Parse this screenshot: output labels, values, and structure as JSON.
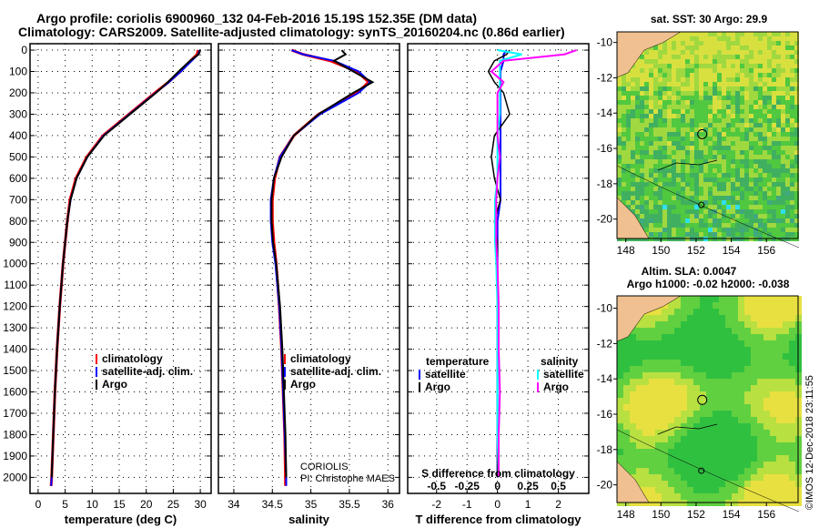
{
  "title": {
    "line1": "Argo profile: coriolis 6900960_132 04-Feb-2016 15.19S 152.35E (DM data)",
    "line2": "Climatology: CARS2009. Satellite-adjusted climatology: synTS_20160204.nc (0.86d earlier)"
  },
  "stamp": "©IMOS 12-Dec-2018 23:11:55",
  "credit": {
    "line1": "CORIOLIS",
    "line2": "PI: Christophe MAES"
  },
  "colors": {
    "climatology": "#ff0000",
    "satellite": "#0000ff",
    "argo": "#000000",
    "sal_satellite": "#00ffff",
    "sal_argo": "#ff00ff"
  },
  "chart_data": [
    {
      "type": "line",
      "id": "temperature",
      "xlabel": "temperature (deg C)",
      "xlim": [
        -1.5,
        32
      ],
      "xticks": [
        "0",
        "5",
        "10",
        "15",
        "20",
        "25",
        "30"
      ],
      "xtickvals": [
        0,
        5,
        10,
        15,
        20,
        25,
        30
      ],
      "ylim": [
        2075,
        -30
      ],
      "yticks": [
        "0",
        "100",
        "200",
        "300",
        "400",
        "500",
        "600",
        "700",
        "800",
        "900",
        "1000",
        "1100",
        "1200",
        "1300",
        "1400",
        "1500",
        "1600",
        "1700",
        "1800",
        "1900",
        "2000"
      ],
      "legend": [
        "climatology",
        "satellite-adj. clim.",
        "Argo"
      ],
      "depth": [
        0,
        20,
        50,
        100,
        150,
        200,
        300,
        400,
        500,
        600,
        700,
        800,
        900,
        1000,
        1200,
        1400,
        1600,
        1800,
        2000,
        2040
      ],
      "series": [
        {
          "name": "climatology",
          "values": [
            29.6,
            29.4,
            28.2,
            26.3,
            24.1,
            21.6,
            16.8,
            12.0,
            9.0,
            7.0,
            5.9,
            5.4,
            5.0,
            4.6,
            4.0,
            3.5,
            3.1,
            2.8,
            2.5,
            2.4
          ]
        },
        {
          "name": "satellite-adj. clim.",
          "values": [
            29.9,
            29.6,
            28.4,
            26.4,
            24.2,
            21.7,
            16.9,
            12.1,
            9.1,
            7.1,
            6.0,
            5.4,
            5.0,
            4.6,
            4.0,
            3.5,
            3.1,
            2.8,
            2.5,
            2.4
          ]
        },
        {
          "name": "Argo",
          "values": [
            30.0,
            29.7,
            28.1,
            26.0,
            24.0,
            21.8,
            17.0,
            12.2,
            9.1,
            7.1,
            6.0,
            5.4,
            5.0,
            4.6,
            4.0,
            3.5,
            3.1,
            2.8,
            2.5,
            null
          ]
        }
      ]
    },
    {
      "type": "line",
      "id": "salinity",
      "xlabel": "salinity",
      "xlim": [
        33.8,
        36.15
      ],
      "xticks": [
        "34",
        "34.5",
        "35",
        "35.5",
        "36"
      ],
      "xtickvals": [
        34,
        34.5,
        35,
        35.5,
        36
      ],
      "legend": [
        "climatology",
        "satellite-adj. clim.",
        "Argo"
      ],
      "depth": [
        0,
        20,
        50,
        100,
        150,
        200,
        300,
        400,
        500,
        600,
        700,
        800,
        900,
        1000,
        1200,
        1400,
        1600,
        1800,
        2000,
        2040
      ],
      "series": [
        {
          "name": "climatology",
          "values": [
            34.75,
            34.9,
            35.25,
            35.6,
            35.75,
            35.6,
            35.1,
            34.78,
            34.6,
            34.53,
            34.5,
            34.5,
            34.52,
            34.55,
            34.59,
            34.62,
            34.64,
            34.66,
            34.67,
            34.67
          ]
        },
        {
          "name": "satellite-adj. clim.",
          "values": [
            34.75,
            34.9,
            35.3,
            35.62,
            35.77,
            35.62,
            35.12,
            34.78,
            34.6,
            34.52,
            34.48,
            34.48,
            34.5,
            34.54,
            34.59,
            34.62,
            34.64,
            34.66,
            34.68,
            34.68
          ]
        },
        {
          "name": "Argo",
          "values": [
            35.4,
            35.45,
            35.3,
            35.55,
            35.8,
            35.55,
            35.1,
            34.78,
            34.62,
            34.52,
            34.49,
            34.49,
            34.51,
            34.55,
            34.6,
            34.63,
            34.65,
            34.67,
            34.68,
            null
          ]
        }
      ]
    },
    {
      "type": "line",
      "id": "difference",
      "xlabel": "T difference from climatology",
      "xlim": [
        -2.95,
        3.0
      ],
      "xticks": [
        "-2",
        "-1",
        "0",
        "1",
        "2"
      ],
      "xtickvals": [
        -2,
        -1,
        0,
        1,
        2
      ],
      "x2label": "S difference from climatology",
      "x2ticks": [
        "-0.5",
        "-0.25",
        "0",
        "0.25",
        "0.5"
      ],
      "x2tickvals": [
        -0.5,
        -0.25,
        0,
        0.25,
        0.5
      ],
      "legend": {
        "temperature_title": "temperature",
        "salinity_title": "salinity",
        "items": [
          "satellite",
          "Argo",
          "satellite",
          "Argo"
        ]
      },
      "depth": [
        0,
        20,
        50,
        100,
        150,
        200,
        300,
        400,
        500,
        600,
        700,
        800,
        900,
        1000,
        1200,
        1400,
        1600,
        1800,
        2000
      ],
      "series": [
        {
          "name": "T satellite",
          "values": [
            0.3,
            0.2,
            0.2,
            0.1,
            0.1,
            0.1,
            0.1,
            0.1,
            0.1,
            0.1,
            0.1,
            0.0,
            0.0,
            0.0,
            0.0,
            0.0,
            0.0,
            0.0,
            0.0
          ]
        },
        {
          "name": "T Argo",
          "values": [
            0.4,
            0.3,
            -0.1,
            -0.3,
            -0.1,
            0.2,
            0.4,
            -0.1,
            -0.2,
            -0.1,
            0.1,
            -0.1,
            0.0,
            0.0,
            0.0,
            0.0,
            0.0,
            0.0,
            0.0
          ]
        },
        {
          "name": "S satellite",
          "values": [
            0.0,
            0.2,
            0.02,
            0.02,
            0.02,
            0.02,
            0.02,
            0.0,
            0.0,
            0.0,
            -0.02,
            -0.02,
            -0.02,
            -0.01,
            0.0,
            0.0,
            0.0,
            0.0,
            0.01
          ]
        },
        {
          "name": "S Argo",
          "values": [
            0.65,
            0.55,
            0.05,
            -0.05,
            0.05,
            0.0,
            0.0,
            0.0,
            0.02,
            0.0,
            -0.01,
            -0.01,
            -0.01,
            0.0,
            0.01,
            0.01,
            0.02,
            0.01,
            0.01
          ]
        }
      ]
    },
    {
      "type": "heatmap",
      "id": "sst_map",
      "title": "sat. SST: 30 Argo: 29.9",
      "xticks": [
        "148",
        "150",
        "152",
        "154",
        "156"
      ],
      "xtickvals": [
        148,
        150,
        152,
        154,
        156
      ],
      "yticks": [
        "-10",
        "-12",
        "-14",
        "-16",
        "-18",
        "-20"
      ],
      "ytickvals": [
        -10,
        -12,
        -14,
        -16,
        -18,
        -20
      ],
      "xlim": [
        147.5,
        157.8
      ],
      "ylim": [
        -9.4,
        -21.1
      ],
      "argo_position": [
        152.35,
        -15.19
      ]
    },
    {
      "type": "heatmap",
      "id": "sla_map",
      "title": "Altim. SLA: 0.0047",
      "subtitle": "Argo h1000: -0.02 h2000: -0.038",
      "xticks": [
        "148",
        "150",
        "152",
        "154",
        "156"
      ],
      "xtickvals": [
        148,
        150,
        152,
        154,
        156
      ],
      "yticks": [
        "-10",
        "-12",
        "-14",
        "-16",
        "-18",
        "-20"
      ],
      "ytickvals": [
        -10,
        -12,
        -14,
        -16,
        -18,
        -20
      ],
      "xlim": [
        147.5,
        157.8
      ],
      "ylim": [
        -9.3,
        -21.0
      ],
      "argo_position": [
        152.35,
        -15.19
      ]
    }
  ]
}
